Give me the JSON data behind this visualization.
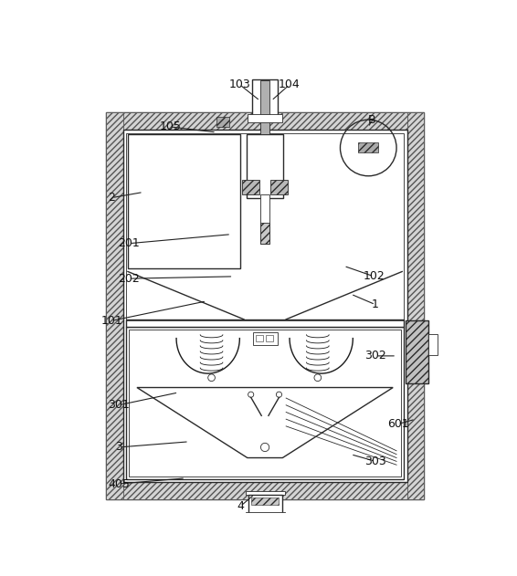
{
  "bg_color": "#ffffff",
  "line_color": "#2a2a2a",
  "lw": 1.0,
  "tlw": 0.6,
  "hatch_fc": "#d8d8d8",
  "hatch_ec": "#555555",
  "wall_hatch": "////",
  "labels": [
    [
      "103",
      247,
      22
    ],
    [
      "104",
      318,
      22
    ],
    [
      "B",
      435,
      72
    ],
    [
      "105",
      148,
      82
    ],
    [
      "2",
      65,
      183
    ],
    [
      "201",
      90,
      248
    ],
    [
      "202",
      90,
      298
    ],
    [
      "101",
      65,
      358
    ],
    [
      "102",
      438,
      295
    ],
    [
      "1",
      440,
      335
    ],
    [
      "302",
      440,
      408
    ],
    [
      "301",
      75,
      478
    ],
    [
      "3",
      75,
      538
    ],
    [
      "405",
      75,
      590
    ],
    [
      "4",
      248,
      622
    ],
    [
      "601",
      472,
      505
    ],
    [
      "303",
      440,
      558
    ]
  ]
}
